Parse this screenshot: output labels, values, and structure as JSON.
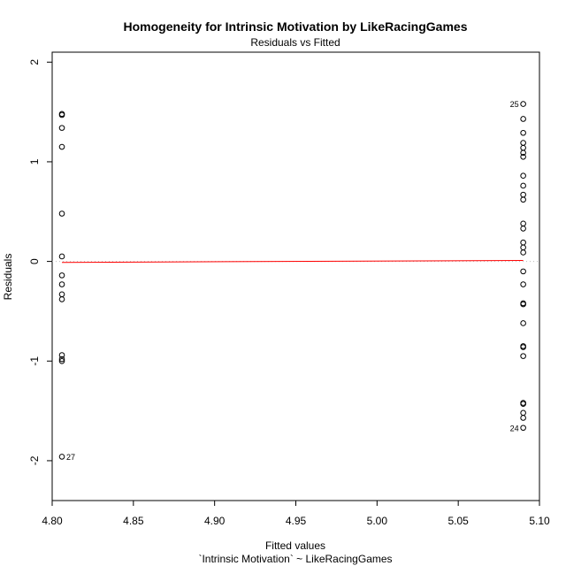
{
  "chart_data": {
    "type": "scatter",
    "title": "Homogeneity for Intrinsic Motivation by LikeRacingGames",
    "subtitle": "Residuals vs Fitted",
    "xlabel": "Fitted values",
    "xlabel2": "`Intrinsic Motivation` ~ LikeRacingGames",
    "ylabel": "Residuals",
    "xlim": [
      4.8,
      5.1
    ],
    "ylim": [
      -2.4,
      2.1
    ],
    "x_ticks": [
      4.8,
      4.85,
      4.9,
      4.95,
      5.0,
      5.05,
      5.1
    ],
    "x_tick_labels": [
      "4.80",
      "4.85",
      "4.90",
      "4.95",
      "5.00",
      "5.05",
      "5.10"
    ],
    "y_ticks": [
      -2,
      -1,
      0,
      1,
      2
    ],
    "y_tick_labels": [
      "-2",
      "-1",
      "0",
      "1",
      "2"
    ],
    "reference_line": {
      "y": 0,
      "style": "dotted",
      "color": "#bbbbbb"
    },
    "smoother": {
      "x": [
        4.806,
        5.09
      ],
      "y": [
        -0.01,
        0.01
      ],
      "color": "#ff0000"
    },
    "series": [
      {
        "x": [
          4.806,
          4.806,
          4.806,
          4.806,
          4.806,
          4.806,
          4.806,
          4.806,
          4.806,
          4.806,
          4.806,
          4.806,
          4.806,
          4.806,
          5.09,
          5.09,
          5.09,
          5.09,
          5.09,
          5.09,
          5.09,
          5.09,
          5.09,
          5.09,
          5.09,
          5.09,
          5.09,
          5.09,
          5.09,
          5.09,
          5.09,
          5.09,
          5.09,
          5.09,
          5.09,
          5.09,
          5.09,
          5.09,
          5.09,
          5.09,
          5.09,
          5.09
        ],
        "y": [
          1.48,
          1.47,
          1.34,
          1.15,
          0.48,
          0.05,
          -0.14,
          -0.23,
          -0.33,
          -0.38,
          -0.94,
          -0.98,
          -1.0,
          -1.96,
          1.58,
          1.43,
          1.29,
          1.19,
          1.14,
          1.09,
          1.05,
          0.86,
          0.76,
          0.67,
          0.62,
          0.38,
          0.33,
          0.19,
          0.14,
          0.09,
          -0.1,
          -0.23,
          -0.42,
          -0.43,
          -0.62,
          -0.85,
          -0.86,
          -0.95,
          -1.42,
          -1.43,
          -1.52,
          -1.57
        ]
      }
    ],
    "extra_point": {
      "x": 5.09,
      "y": -1.67
    },
    "annotations": [
      {
        "text": "27",
        "x": 4.806,
        "y": -1.96,
        "side": "right"
      },
      {
        "text": "25",
        "x": 5.09,
        "y": 1.58,
        "side": "left"
      },
      {
        "text": "24",
        "x": 5.09,
        "y": -1.67,
        "side": "left"
      }
    ]
  }
}
